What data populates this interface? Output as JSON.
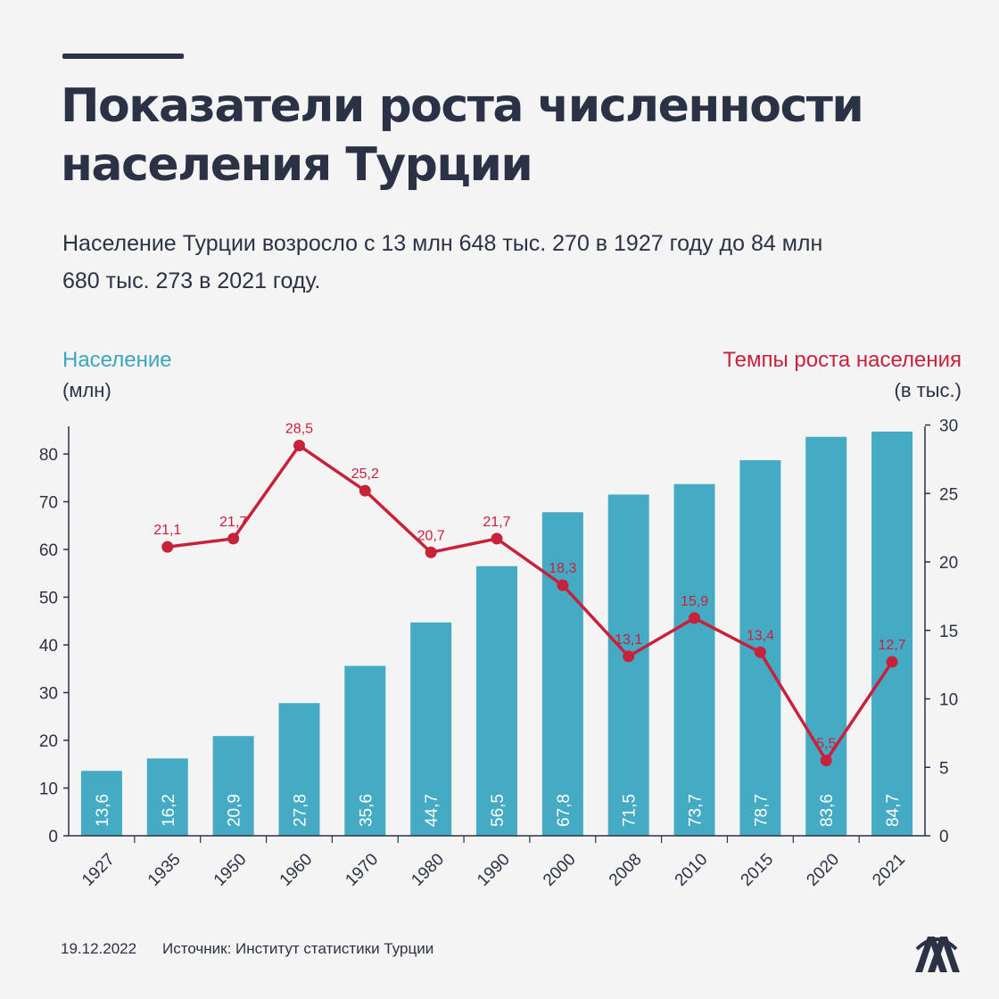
{
  "header": {
    "title_line1": "Показатели роста численности",
    "title_line2": "населения Турции",
    "subtitle_line1": "Население Турции возросло с 13 млн 648 тыс. 270 в 1927 году  до 84 млн",
    "subtitle_line2": "680 тыс. 273 в 2021 году."
  },
  "legend": {
    "left_title": "Население",
    "left_unit": "(млн)",
    "right_title": "Темпы роста населения",
    "right_unit": "(в тыс.)"
  },
  "footer": {
    "date": "19.12.2022",
    "source": "Источник: Институт статистики Турции"
  },
  "logo": {
    "icon": "aa-logo-icon"
  },
  "colors": {
    "bar": "#45aac3",
    "line": "#c8213a",
    "text": "#2b3245",
    "background": "#f4f4f5"
  },
  "chart_data": {
    "type": "bar+line",
    "categories": [
      "1927",
      "1935",
      "1950",
      "1960",
      "1970",
      "1980",
      "1990",
      "2000",
      "2008",
      "2010",
      "2015",
      "2020",
      "2021"
    ],
    "series": [
      {
        "name": "Население",
        "type": "bar",
        "axis": "left",
        "values": [
          13.6,
          16.2,
          20.9,
          27.8,
          35.6,
          44.7,
          56.5,
          67.8,
          71.5,
          73.7,
          78.7,
          83.6,
          84.7
        ],
        "labels": [
          "13,6",
          "16,2",
          "20,9",
          "27,8",
          "35,6",
          "44,7",
          "56,5",
          "67,8",
          "71,5",
          "73,7",
          "78,7",
          "83,6",
          "84,7"
        ]
      },
      {
        "name": "Темпы роста населения",
        "type": "line",
        "axis": "right",
        "values": [
          null,
          21.1,
          21.7,
          28.5,
          25.2,
          20.7,
          21.7,
          18.3,
          13.1,
          15.9,
          13.4,
          5.5,
          12.7
        ],
        "labels": [
          null,
          "21,1",
          "21,7",
          "28,5",
          "25,2",
          "20,7",
          "21,7",
          "18,3",
          "13,1",
          "15,9",
          "13,4",
          "5,5",
          "12,7"
        ]
      }
    ],
    "y_left": {
      "ylim": [
        0,
        86
      ],
      "ticks": [
        0,
        10,
        20,
        30,
        40,
        50,
        60,
        70,
        80
      ]
    },
    "y_right": {
      "ylim": [
        0,
        30
      ],
      "ticks": [
        0,
        5,
        10,
        15,
        20,
        25,
        30
      ]
    },
    "grid": false
  }
}
